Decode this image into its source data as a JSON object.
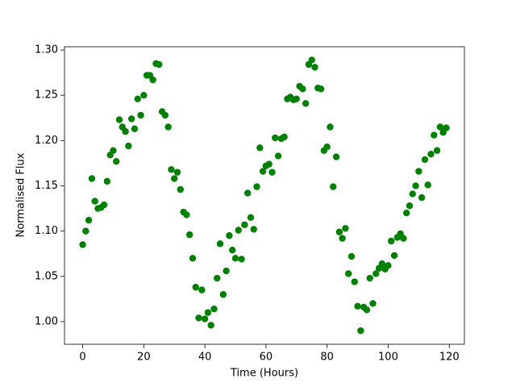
{
  "chart_data": {
    "type": "scatter",
    "xlabel": "Time (Hours)",
    "ylabel": "Normalised Flux",
    "x": [
      0,
      1,
      2,
      3,
      4,
      5,
      6,
      7,
      8,
      9,
      10,
      11,
      12,
      13,
      14,
      15,
      16,
      17,
      18,
      19,
      20,
      21,
      22,
      23,
      24,
      25,
      26,
      27,
      28,
      29,
      30,
      31,
      32,
      33,
      34,
      35,
      36,
      37,
      38,
      39,
      40,
      41,
      42,
      43,
      44,
      45,
      46,
      47,
      48,
      49,
      50,
      51,
      52,
      53,
      54,
      55,
      56,
      57,
      58,
      59,
      60,
      61,
      62,
      63,
      64,
      65,
      66,
      67,
      68,
      69,
      70,
      71,
      72,
      73,
      74,
      75,
      76,
      77,
      78,
      79,
      80,
      81,
      82,
      83,
      84,
      85,
      86,
      87,
      88,
      89,
      90,
      91,
      92,
      93,
      94,
      95,
      96,
      97,
      98,
      99,
      100,
      101,
      102,
      103,
      104,
      105,
      106,
      107,
      108,
      109,
      110,
      111,
      112,
      113,
      114,
      115,
      116,
      117,
      118,
      119
    ],
    "values": [
      1.085,
      1.1,
      1.112,
      1.158,
      1.133,
      1.125,
      1.126,
      1.129,
      1.155,
      1.184,
      1.189,
      1.177,
      1.223,
      1.215,
      1.21,
      1.194,
      1.224,
      1.213,
      1.246,
      1.228,
      1.25,
      1.272,
      1.272,
      1.267,
      1.285,
      1.284,
      1.232,
      1.228,
      1.215,
      1.168,
      1.158,
      1.165,
      1.146,
      1.121,
      1.118,
      1.096,
      1.07,
      1.038,
      1.004,
      1.035,
      1.003,
      1.01,
      0.996,
      1.014,
      1.048,
      1.086,
      1.03,
      1.056,
      1.095,
      1.079,
      1.07,
      1.101,
      1.069,
      1.107,
      1.142,
      1.115,
      1.102,
      1.149,
      1.192,
      1.166,
      1.172,
      1.174,
      1.165,
      1.203,
      1.183,
      1.202,
      1.204,
      1.246,
      1.248,
      1.245,
      1.246,
      1.26,
      1.257,
      1.241,
      1.284,
      1.289,
      1.281,
      1.258,
      1.257,
      1.189,
      1.193,
      1.215,
      1.149,
      1.182,
      1.099,
      1.092,
      1.103,
      1.053,
      1.072,
      1.044,
      1.017,
      0.99,
      1.016,
      1.013,
      1.048,
      1.02,
      1.053,
      1.059,
      1.064,
      1.058,
      1.062,
      1.089,
      1.073,
      1.093,
      1.097,
      1.092,
      1.12,
      1.128,
      1.141,
      1.15,
      1.166,
      1.137,
      1.179,
      1.151,
      1.185,
      1.206,
      1.189,
      1.215,
      1.209,
      1.214
    ],
    "color": "#008000",
    "xlim": [
      -5.95,
      124.95
    ],
    "ylim": [
      0.975,
      1.3036
    ],
    "xticks": [
      0,
      20,
      40,
      60,
      80,
      100,
      120
    ],
    "yticks": [
      {
        "value": 1.0,
        "label": "1.00"
      },
      {
        "value": 1.05,
        "label": "1.05"
      },
      {
        "value": 1.1,
        "label": "1.10"
      },
      {
        "value": 1.15,
        "label": "1.15"
      },
      {
        "value": 1.2,
        "label": "1.20"
      },
      {
        "value": 1.25,
        "label": "1.25"
      },
      {
        "value": 1.3,
        "label": "1.30"
      }
    ]
  }
}
